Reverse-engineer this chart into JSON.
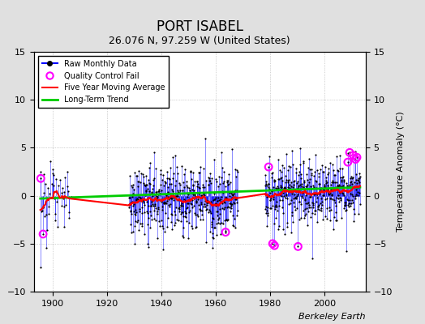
{
  "title": "PORT ISABEL",
  "subtitle": "26.076 N, 97.259 W (United States)",
  "ylabel_right": "Temperature Anomaly (°C)",
  "watermark": "Berkeley Earth",
  "xlim": [
    1893,
    2015
  ],
  "ylim": [
    -10,
    15
  ],
  "yticks": [
    -10,
    -5,
    0,
    5,
    10,
    15
  ],
  "xticks": [
    1900,
    1920,
    1940,
    1960,
    1980,
    2000
  ],
  "seed": 42,
  "start_year": 1895,
  "end_year": 2013,
  "colors": {
    "raw_line": "#0000FF",
    "raw_marker": "#000000",
    "qc_fail": "#FF00FF",
    "moving_avg": "#FF0000",
    "long_term": "#00CC00",
    "background": "#E0E0E0",
    "plot_bg": "#FFFFFF",
    "grid": "#AAAAAA"
  }
}
